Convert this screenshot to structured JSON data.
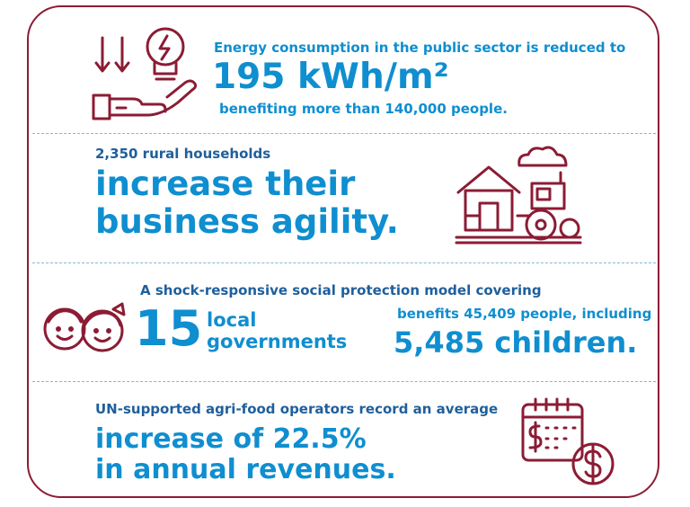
{
  "sections": [
    {
      "intro": "Energy consumption in the public sector is reduced to",
      "highlight": "195 kWh/m²",
      "outro": "benefiting more than 140,000 people.",
      "icon": "energy-hand-bulb-icon"
    },
    {
      "intro": "2,350 rural households",
      "highlight_line1": "increase their",
      "highlight_line2": "business agility.",
      "icon": "farm-tractor-icon"
    },
    {
      "intro": "A shock-responsive social protection model covering",
      "number": "15",
      "number_label_line1": "local",
      "number_label_line2": "governments",
      "benefit_intro": "benefits 45,409 people, including",
      "benefit_highlight": "5,485 children.",
      "icon": "children-faces-icon"
    },
    {
      "intro": "UN-supported agri-food operators record an average",
      "highlight_line1": "increase of 22.5%",
      "highlight_line2": "in annual revenues.",
      "icon": "calendar-dollar-icon"
    }
  ],
  "colors": {
    "frame": "#8b1c34",
    "icon": "#8b1c34",
    "accent_blue": "#0f8ed0",
    "divider": "#7fb9df"
  }
}
